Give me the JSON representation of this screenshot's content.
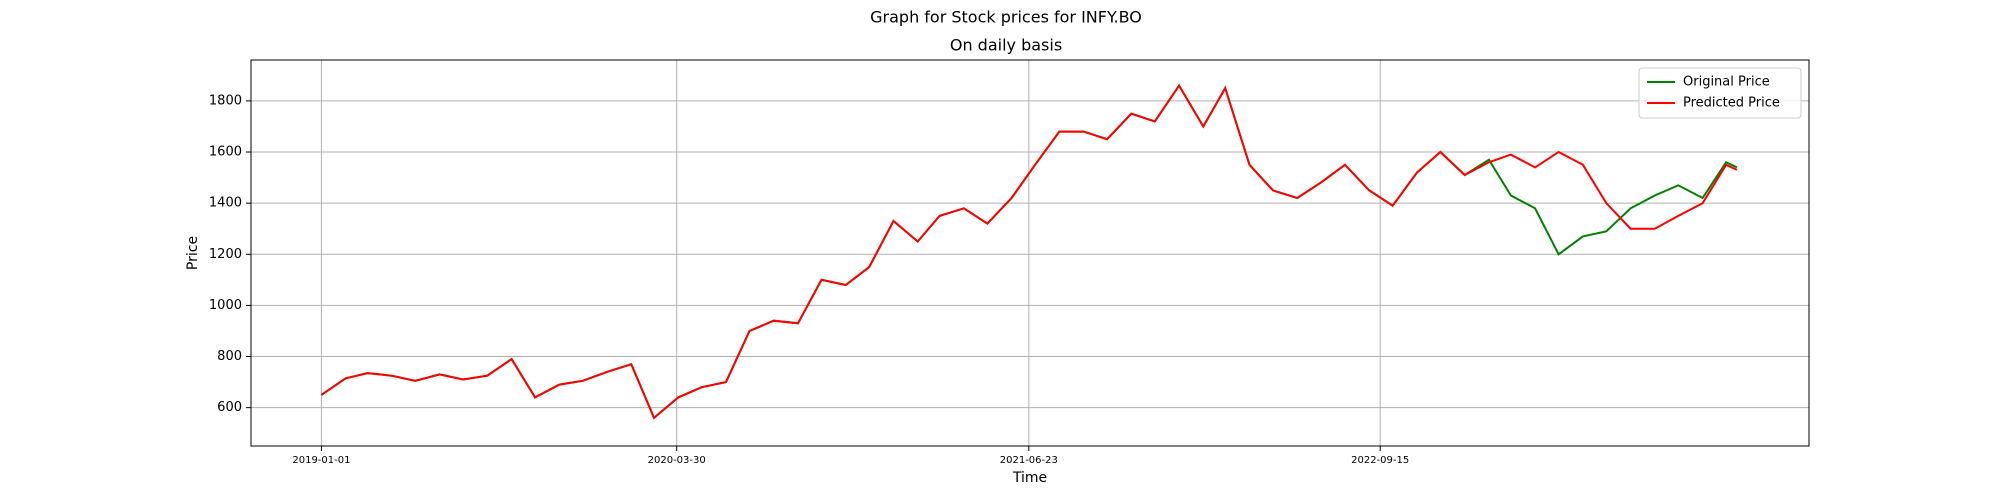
{
  "chart_data": {
    "type": "line",
    "suptitle": "Graph for Stock prices for INFY.BO",
    "title": "On daily basis",
    "xlabel": "Time",
    "ylabel": "Price",
    "x": [
      "2019-01-01",
      "2019-02-01",
      "2019-03-01",
      "2019-04-01",
      "2019-05-01",
      "2019-06-01",
      "2019-07-01",
      "2019-08-01",
      "2019-09-01",
      "2019-10-01",
      "2019-11-01",
      "2019-12-01",
      "2020-01-01",
      "2020-02-01",
      "2020-03-01",
      "2020-04-01",
      "2020-05-01",
      "2020-06-01",
      "2020-07-01",
      "2020-08-01",
      "2020-09-01",
      "2020-10-01",
      "2020-11-01",
      "2020-12-01",
      "2021-01-01",
      "2021-02-01",
      "2021-03-01",
      "2021-04-01",
      "2021-05-01",
      "2021-06-01",
      "2021-07-01",
      "2021-08-01",
      "2021-09-01",
      "2021-10-01",
      "2021-11-01",
      "2021-12-01",
      "2022-01-01",
      "2022-02-01",
      "2022-03-01",
      "2022-04-01",
      "2022-05-01",
      "2022-06-01",
      "2022-07-01",
      "2022-08-01",
      "2022-09-01",
      "2022-10-01",
      "2022-11-01",
      "2022-12-01",
      "2023-01-01",
      "2023-02-01",
      "2023-03-01",
      "2023-04-01",
      "2023-05-01",
      "2023-06-01",
      "2023-07-01",
      "2023-08-01",
      "2023-09-01",
      "2023-10-01",
      "2023-11-01",
      "2023-12-01",
      "2023-12-15"
    ],
    "series": [
      {
        "name": "Original Price",
        "color": "#008000",
        "values": [
          650,
          715,
          735,
          725,
          705,
          730,
          710,
          725,
          790,
          640,
          690,
          705,
          740,
          770,
          560,
          640,
          680,
          700,
          900,
          940,
          930,
          1100,
          1080,
          1150,
          1330,
          1250,
          1350,
          1380,
          1320,
          1420,
          1550,
          1680,
          1680,
          1650,
          1750,
          1720,
          1860,
          1700,
          1850,
          1550,
          1450,
          1420,
          1480,
          1550,
          1450,
          1390,
          1520,
          1600,
          1510,
          1570,
          1430,
          1380,
          1200,
          1270,
          1290,
          1380,
          1430,
          1470,
          1420,
          1560,
          1540
        ]
      },
      {
        "name": "Predicted Price",
        "color": "#ff0000",
        "values": [
          650,
          715,
          735,
          725,
          705,
          730,
          710,
          725,
          790,
          640,
          690,
          705,
          740,
          770,
          560,
          640,
          680,
          700,
          900,
          940,
          930,
          1100,
          1080,
          1150,
          1330,
          1250,
          1350,
          1380,
          1320,
          1420,
          1550,
          1680,
          1680,
          1650,
          1750,
          1720,
          1860,
          1700,
          1850,
          1550,
          1450,
          1420,
          1480,
          1550,
          1450,
          1390,
          1520,
          1600,
          1510,
          1560,
          1590,
          1540,
          1600,
          1550,
          1400,
          1300,
          1300,
          1350,
          1400,
          1550,
          1530
        ]
      }
    ],
    "xlim": [
      "2018-10-03",
      "2024-03-16"
    ],
    "xticks": [
      "2019-01-01",
      "2020-03-30",
      "2021-06-23",
      "2022-09-15"
    ],
    "ylim": [
      450,
      1960
    ],
    "yticks": [
      600,
      800,
      1000,
      1200,
      1400,
      1600,
      1800
    ],
    "grid": true,
    "legend": "upper right"
  }
}
